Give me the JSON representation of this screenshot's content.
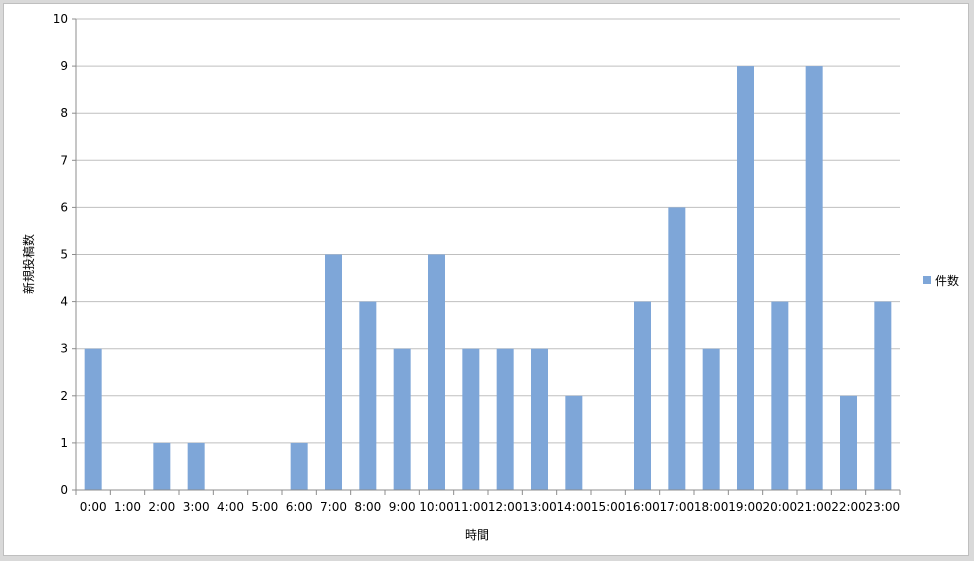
{
  "chart_data": {
    "type": "bar",
    "categories": [
      "0:00",
      "1:00",
      "2:00",
      "3:00",
      "4:00",
      "5:00",
      "6:00",
      "7:00",
      "8:00",
      "9:00",
      "10:00",
      "11:00",
      "12:00",
      "13:00",
      "14:00",
      "15:00",
      "16:00",
      "17:00",
      "18:00",
      "19:00",
      "20:00",
      "21:00",
      "22:00",
      "23:00"
    ],
    "series": [
      {
        "name": "件数",
        "values": [
          3,
          0,
          1,
          1,
          0,
          0,
          1,
          5,
          4,
          3,
          5,
          3,
          3,
          3,
          2,
          0,
          4,
          6,
          3,
          9,
          4,
          9,
          2,
          4
        ]
      }
    ],
    "title": "",
    "xlabel": "時間",
    "ylabel": "新規投稿数",
    "ylim": [
      0,
      10
    ],
    "yticks": [
      0,
      1,
      2,
      3,
      4,
      5,
      6,
      7,
      8,
      9,
      10
    ],
    "grid": true,
    "legend_position": "right",
    "colors": {
      "bar": "#7ea6d8",
      "grid": "#bfbfbf",
      "axis": "#8c8c8c"
    }
  }
}
